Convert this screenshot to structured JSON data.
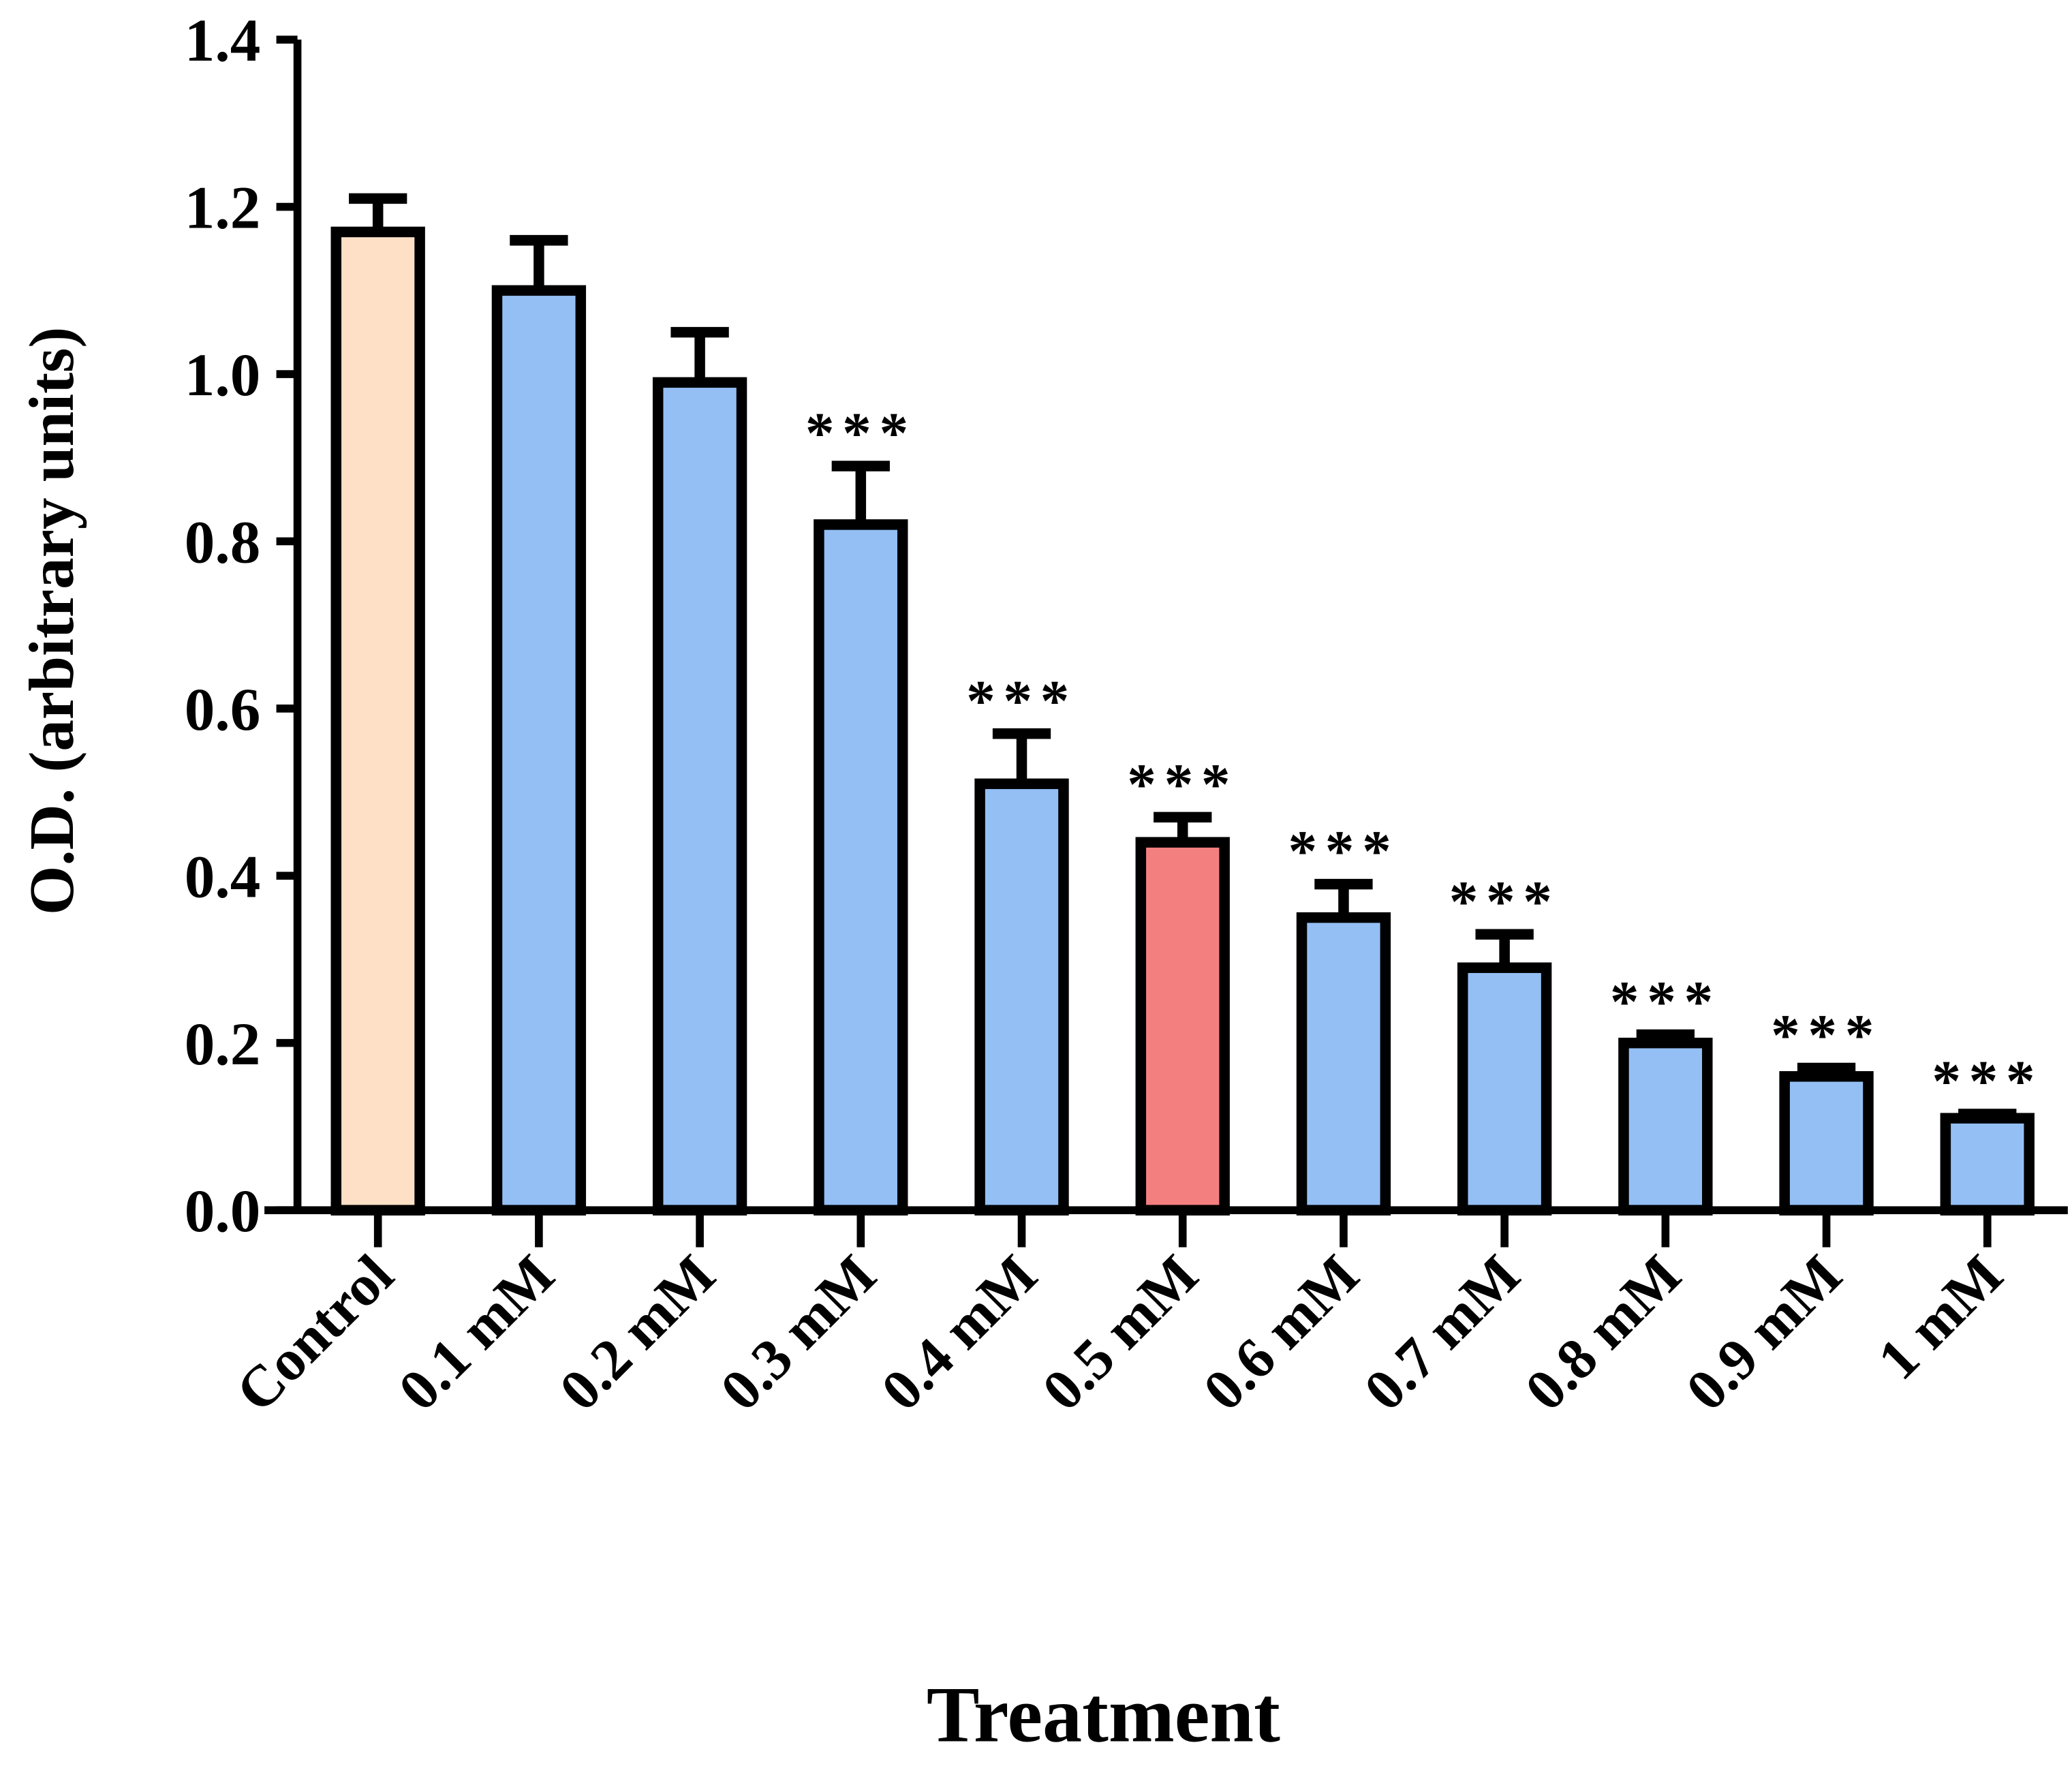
{
  "chart_data": {
    "type": "bar",
    "x_label": "Treatment",
    "y_label": "O.D. (arbitrary units)",
    "categories": [
      "Control",
      "0.1 mM",
      "0.2 mM",
      "0.3 mM",
      "0.4 mM",
      "0.5 mM",
      "0.6 mM",
      "0.7 mM",
      "0.8 mM",
      "0.9 mM",
      "1 mM"
    ],
    "values": [
      1.17,
      1.1,
      0.99,
      0.82,
      0.51,
      0.44,
      0.35,
      0.29,
      0.2,
      0.16,
      0.11
    ],
    "errors": [
      0.04,
      0.06,
      0.06,
      0.07,
      0.06,
      0.03,
      0.04,
      0.04,
      0.01,
      0.01,
      0.005
    ],
    "colors": [
      "#fde0c5",
      "#94bff5",
      "#94bff5",
      "#94bff5",
      "#94bff5",
      "#f47f7f",
      "#94bff5",
      "#94bff5",
      "#94bff5",
      "#94bff5",
      "#94bff5"
    ],
    "significance": [
      null,
      null,
      null,
      "***",
      "***",
      "***",
      "***",
      "***",
      "***",
      "***",
      "***"
    ],
    "ylim": [
      0,
      1.4
    ],
    "yticks": [
      {
        "value": 0,
        "label": "0.0"
      },
      0.2,
      0.4,
      0.6,
      0.8,
      {
        "value": 1,
        "label": "1.0"
      },
      1.2,
      1.4
    ]
  }
}
